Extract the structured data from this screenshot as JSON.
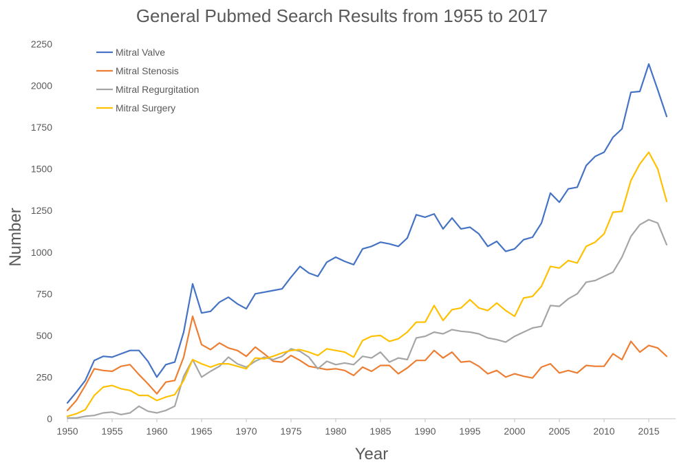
{
  "chart_data": {
    "type": "line",
    "title": "General Pubmed Search Results from 1955 to 2017",
    "xlabel": "Year",
    "ylabel": "Number",
    "xlim": [
      1950,
      2018
    ],
    "ylim": [
      0,
      2250
    ],
    "x_ticks": [
      1950,
      1955,
      1960,
      1965,
      1970,
      1975,
      1980,
      1985,
      1990,
      1995,
      2000,
      2005,
      2010,
      2015
    ],
    "y_ticks": [
      0,
      250,
      500,
      750,
      1000,
      1250,
      1500,
      1750,
      2000,
      2250
    ],
    "grid": false,
    "legend_position": "top-left",
    "x": [
      1950,
      1951,
      1952,
      1953,
      1954,
      1955,
      1956,
      1957,
      1958,
      1959,
      1960,
      1961,
      1962,
      1963,
      1964,
      1965,
      1966,
      1967,
      1968,
      1969,
      1970,
      1971,
      1972,
      1973,
      1974,
      1975,
      1976,
      1977,
      1978,
      1979,
      1980,
      1981,
      1982,
      1983,
      1984,
      1985,
      1986,
      1987,
      1988,
      1989,
      1990,
      1991,
      1992,
      1993,
      1994,
      1995,
      1996,
      1997,
      1998,
      1999,
      2000,
      2001,
      2002,
      2003,
      2004,
      2005,
      2006,
      2007,
      2008,
      2009,
      2010,
      2011,
      2012,
      2013,
      2014,
      2015,
      2016,
      2017
    ],
    "series": [
      {
        "name": "Mitral Valve",
        "color": "#4472C4",
        "values": [
          95,
          160,
          230,
          350,
          375,
          370,
          390,
          410,
          410,
          345,
          250,
          325,
          340,
          520,
          810,
          635,
          645,
          700,
          730,
          690,
          660,
          750,
          760,
          770,
          780,
          850,
          915,
          875,
          855,
          940,
          970,
          945,
          925,
          1020,
          1035,
          1060,
          1050,
          1035,
          1085,
          1225,
          1210,
          1230,
          1140,
          1205,
          1140,
          1150,
          1110,
          1035,
          1065,
          1005,
          1020,
          1075,
          1090,
          1175,
          1355,
          1300,
          1380,
          1390,
          1520,
          1575,
          1600,
          1690,
          1740,
          1960,
          1965,
          2130,
          1975,
          1815
        ]
      },
      {
        "name": "Mitral Stenosis",
        "color": "#ED7D31",
        "values": [
          50,
          110,
          200,
          300,
          290,
          285,
          315,
          325,
          265,
          210,
          150,
          220,
          230,
          370,
          615,
          445,
          415,
          455,
          425,
          410,
          375,
          430,
          390,
          345,
          340,
          380,
          350,
          315,
          305,
          295,
          300,
          290,
          260,
          310,
          285,
          320,
          320,
          270,
          305,
          350,
          350,
          410,
          365,
          400,
          340,
          345,
          315,
          270,
          290,
          250,
          270,
          255,
          245,
          310,
          330,
          275,
          290,
          275,
          320,
          315,
          315,
          390,
          355,
          465,
          400,
          440,
          425,
          375
        ]
      },
      {
        "name": "Mitral Regurgitation",
        "color": "#A5A5A5",
        "values": [
          5,
          5,
          15,
          20,
          35,
          40,
          25,
          35,
          75,
          45,
          35,
          50,
          75,
          255,
          355,
          250,
          285,
          315,
          370,
          330,
          310,
          345,
          370,
          355,
          375,
          420,
          405,
          370,
          300,
          345,
          325,
          335,
          325,
          375,
          365,
          400,
          340,
          365,
          355,
          485,
          495,
          520,
          510,
          535,
          525,
          520,
          510,
          485,
          475,
          460,
          495,
          520,
          545,
          555,
          680,
          675,
          720,
          750,
          820,
          830,
          855,
          880,
          970,
          1095,
          1165,
          1195,
          1175,
          1045
        ]
      },
      {
        "name": "Mitral Surgery",
        "color": "#FFC000",
        "values": [
          15,
          30,
          55,
          140,
          190,
          200,
          180,
          170,
          140,
          140,
          110,
          130,
          145,
          230,
          355,
          330,
          310,
          330,
          330,
          315,
          300,
          365,
          360,
          375,
          395,
          410,
          415,
          400,
          380,
          420,
          410,
          400,
          370,
          470,
          495,
          500,
          465,
          480,
          520,
          580,
          580,
          680,
          590,
          655,
          665,
          715,
          665,
          650,
          695,
          650,
          615,
          725,
          735,
          795,
          915,
          905,
          950,
          935,
          1035,
          1060,
          1110,
          1240,
          1245,
          1430,
          1530,
          1600,
          1500,
          1305
        ]
      }
    ]
  }
}
